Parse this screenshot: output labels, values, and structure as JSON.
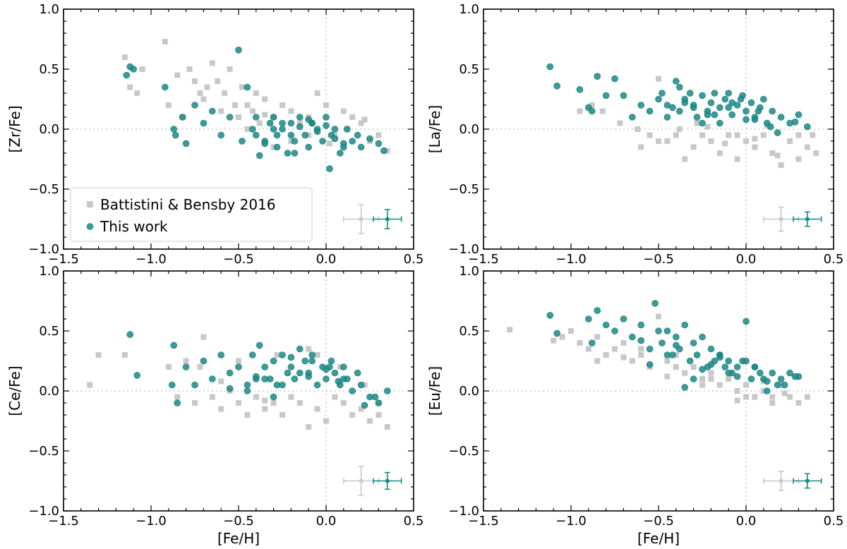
{
  "figure": {
    "legend_location": "lower-left of top-left panel"
  },
  "colors": {
    "battistini": "#c8c8c8",
    "this_work": "#1a8a86",
    "this_work_edge": "#0f7773",
    "zero_line": "#c8c8c8",
    "axes": "#000000"
  },
  "legend": {
    "items": [
      {
        "label": "Battistini & Bensby 2016",
        "marker": "square"
      },
      {
        "label": "This work",
        "marker": "circle"
      }
    ]
  },
  "chart_data": [
    {
      "type": "scatter",
      "panel": "top-left",
      "title": "",
      "xlabel": "",
      "ylabel": "[Zr/Fe]",
      "xlim": [
        -1.5,
        0.5
      ],
      "ylim": [
        -1.0,
        1.0
      ],
      "xticks": [
        "−1.5",
        "−1.0",
        "−0.5",
        "0.0",
        "0.5"
      ],
      "yticks": [
        "−1.0",
        "−0.5",
        "0.0",
        "0.5",
        "1.0"
      ],
      "series": [
        {
          "name": "Battistini & Bensby 2016",
          "x": [
            -1.15,
            -1.12,
            -1.08,
            -1.05,
            -0.92,
            -0.9,
            -0.85,
            -0.82,
            -0.78,
            -0.75,
            -0.72,
            -0.7,
            -0.68,
            -0.65,
            -0.62,
            -0.6,
            -0.58,
            -0.55,
            -0.52,
            -0.5,
            -0.48,
            -0.45,
            -0.42,
            -0.4,
            -0.38,
            -0.35,
            -0.3,
            -0.25,
            -0.2,
            -0.15,
            -0.1,
            -0.05,
            0.0,
            0.05,
            0.1,
            0.15,
            0.2,
            0.25,
            0.3,
            0.35,
            -0.3,
            -0.2,
            -0.1,
            0.02,
            0.12,
            0.22,
            -0.45,
            -0.35
          ],
          "y": [
            0.6,
            0.35,
            0.3,
            0.5,
            0.73,
            0.2,
            0.45,
            0.1,
            0.5,
            0.4,
            0.3,
            0.25,
            0.35,
            0.55,
            0.4,
            0.15,
            0.3,
            0.5,
            0.2,
            0.1,
            0.35,
            0.2,
            0.15,
            0.3,
            0.05,
            0.25,
            0.1,
            0.2,
            0.15,
            0.05,
            0.1,
            0.3,
            0.2,
            -0.05,
            0.15,
            0.1,
            0.05,
            -0.1,
            -0.05,
            -0.18,
            -0.15,
            -0.1,
            -0.05,
            -0.12,
            0.0,
            0.08,
            0.0,
            0.12
          ]
        },
        {
          "name": "This work",
          "x": [
            -1.14,
            -1.12,
            -1.1,
            -0.92,
            -0.87,
            -0.86,
            -0.82,
            -0.8,
            -0.75,
            -0.7,
            -0.65,
            -0.6,
            -0.55,
            -0.5,
            -0.48,
            -0.45,
            -0.42,
            -0.4,
            -0.38,
            -0.35,
            -0.32,
            -0.3,
            -0.28,
            -0.25,
            -0.22,
            -0.2,
            -0.18,
            -0.15,
            -0.12,
            -0.1,
            -0.08,
            -0.05,
            -0.02,
            0.0,
            0.03,
            0.05,
            0.08,
            0.1,
            0.12,
            0.15,
            0.18,
            0.2,
            0.25,
            0.3,
            0.33,
            -0.3,
            -0.25,
            -0.2,
            -0.15,
            -0.1,
            -0.05,
            0.0,
            0.05,
            0.1,
            -0.35,
            -0.28,
            -0.18,
            -0.08,
            0.02,
            -0.4
          ],
          "y": [
            0.45,
            0.52,
            0.5,
            0.35,
            0.0,
            -0.05,
            0.1,
            -0.12,
            0.2,
            0.05,
            0.15,
            -0.05,
            0.1,
            0.66,
            -0.1,
            0.35,
            0.0,
            -0.05,
            -0.22,
            -0.1,
            0.05,
            0.1,
            -0.15,
            0.0,
            -0.2,
            0.05,
            -0.1,
            0.1,
            -0.05,
            -0.15,
            0.05,
            0.0,
            -0.1,
            0.1,
            -0.05,
            0.0,
            -0.2,
            -0.12,
            0.0,
            -0.1,
            -0.05,
            -0.15,
            -0.08,
            -0.12,
            -0.18,
            0.0,
            0.05,
            -0.05,
            0.02,
            0.08,
            -0.02,
            0.03,
            -0.08,
            -0.15,
            -0.12,
            -0.05,
            -0.2,
            0.05,
            -0.33,
            0.1
          ]
        }
      ],
      "error_bars": [
        {
          "name": "Battistini & Bensby 2016",
          "x": 0.2,
          "y": -0.75,
          "xerr": 0.1,
          "yerr": 0.12
        },
        {
          "name": "This work",
          "x": 0.35,
          "y": -0.75,
          "xerr": 0.08,
          "yerr": 0.08
        }
      ]
    },
    {
      "type": "scatter",
      "panel": "top-right",
      "title": "",
      "xlabel": "",
      "ylabel": "[La/Fe]",
      "xlim": [
        -1.5,
        0.5
      ],
      "ylim": [
        -1.0,
        1.0
      ],
      "xticks": [
        "−1.5",
        "−1.0",
        "−0.5",
        "0.0",
        "0.5"
      ],
      "yticks": [
        "−1.0",
        "−0.5",
        "0.0",
        "0.5",
        "1.0"
      ],
      "series": [
        {
          "name": "Battistini & Bensby 2016",
          "x": [
            -0.95,
            -0.88,
            -0.82,
            -0.72,
            -0.62,
            -0.55,
            -0.5,
            -0.45,
            -0.4,
            -0.35,
            -0.3,
            -0.25,
            -0.2,
            -0.15,
            -0.1,
            -0.05,
            0.0,
            0.05,
            0.1,
            0.15,
            0.2,
            0.25,
            0.3,
            0.35,
            0.38,
            0.4,
            -0.38,
            -0.28,
            -0.12,
            0.05,
            0.18,
            -0.5,
            -0.22,
            0.3,
            -0.6,
            -0.05,
            0.12
          ],
          "y": [
            0.15,
            0.2,
            0.15,
            0.05,
            0.0,
            -0.05,
            0.42,
            -0.1,
            -0.05,
            -0.25,
            -0.15,
            -0.05,
            -0.1,
            -0.2,
            -0.05,
            -0.25,
            -0.1,
            -0.15,
            -0.05,
            -0.2,
            -0.3,
            -0.1,
            -0.05,
            -0.15,
            -0.05,
            -0.2,
            0.0,
            0.05,
            -0.12,
            -0.08,
            -0.22,
            -0.1,
            0.02,
            -0.25,
            -0.15,
            -0.05,
            0.03
          ]
        },
        {
          "name": "This work",
          "x": [
            -1.12,
            -1.08,
            -0.95,
            -0.9,
            -0.88,
            -0.85,
            -0.8,
            -0.75,
            -0.7,
            -0.65,
            -0.6,
            -0.55,
            -0.5,
            -0.48,
            -0.45,
            -0.42,
            -0.4,
            -0.38,
            -0.35,
            -0.32,
            -0.3,
            -0.28,
            -0.25,
            -0.22,
            -0.2,
            -0.18,
            -0.15,
            -0.12,
            -0.1,
            -0.08,
            -0.05,
            -0.02,
            0.0,
            0.03,
            0.05,
            0.08,
            0.1,
            0.12,
            0.15,
            0.2,
            0.25,
            0.3,
            0.35,
            -0.38,
            -0.3,
            -0.22,
            -0.15,
            -0.08,
            0.0,
            0.07,
            0.14,
            -0.25,
            -0.18,
            -0.1,
            -0.03,
            0.05,
            0.18,
            -0.45,
            -0.35,
            0.28
          ],
          "y": [
            0.52,
            0.36,
            0.33,
            0.18,
            0.15,
            0.44,
            0.28,
            0.42,
            0.28,
            0.1,
            0.2,
            0.15,
            0.25,
            0.3,
            0.2,
            0.18,
            0.4,
            0.15,
            0.25,
            0.3,
            0.2,
            0.1,
            0.28,
            0.15,
            0.22,
            0.3,
            0.18,
            0.25,
            0.3,
            0.12,
            0.2,
            0.28,
            0.15,
            0.22,
            0.1,
            0.18,
            0.25,
            0.05,
            0.15,
            0.1,
            0.05,
            0.12,
            0.02,
            0.35,
            0.18,
            0.12,
            0.05,
            0.22,
            0.08,
            0.15,
            0.02,
            0.05,
            0.12,
            0.18,
            0.25,
            0.08,
            -0.03,
            0.1,
            0.22,
            0.06
          ]
        }
      ],
      "error_bars": [
        {
          "name": "Battistini & Bensby 2016",
          "x": 0.2,
          "y": -0.75,
          "xerr": 0.1,
          "yerr": 0.1
        },
        {
          "name": "This work",
          "x": 0.35,
          "y": -0.75,
          "xerr": 0.08,
          "yerr": 0.06
        }
      ]
    },
    {
      "type": "scatter",
      "panel": "bottom-left",
      "title": "",
      "xlabel": "[Fe/H]",
      "ylabel": "[Ce/Fe]",
      "xlim": [
        -1.5,
        0.5
      ],
      "ylim": [
        -1.0,
        1.0
      ],
      "xticks": [
        "−1.5",
        "−1.0",
        "−0.5",
        "0.0",
        "0.5"
      ],
      "yticks": [
        "−1.0",
        "−0.5",
        "0.0",
        "0.5",
        "1.0"
      ],
      "series": [
        {
          "name": "Battistini & Bensby 2016",
          "x": [
            -1.35,
            -1.3,
            -1.15,
            -0.9,
            -0.85,
            -0.8,
            -0.75,
            -0.7,
            -0.65,
            -0.6,
            -0.55,
            -0.5,
            -0.45,
            -0.4,
            -0.35,
            -0.3,
            -0.25,
            -0.2,
            -0.15,
            -0.1,
            -0.05,
            0.0,
            0.05,
            0.1,
            0.15,
            0.2,
            0.25,
            0.3,
            0.35,
            -0.72,
            -0.5,
            -0.28,
            -0.1,
            0.08,
            0.22,
            -0.6,
            -0.35,
            -0.05,
            0.3
          ],
          "y": [
            0.05,
            0.3,
            0.3,
            0.2,
            -0.05,
            0.25,
            -0.1,
            0.45,
            -0.05,
            -0.15,
            0.0,
            -0.1,
            -0.2,
            -0.05,
            -0.15,
            -0.1,
            -0.2,
            -0.05,
            -0.1,
            -0.3,
            -0.15,
            -0.25,
            -0.05,
            -0.1,
            -0.2,
            -0.15,
            -0.25,
            -0.1,
            -0.3,
            0.2,
            0.25,
            0.3,
            0.35,
            0.2,
            0.05,
            0.08,
            -0.08,
            0.3,
            -0.2
          ]
        },
        {
          "name": "This work",
          "x": [
            -1.12,
            -1.08,
            -0.88,
            -0.87,
            -0.85,
            -0.8,
            -0.75,
            -0.7,
            -0.65,
            -0.6,
            -0.55,
            -0.5,
            -0.45,
            -0.42,
            -0.4,
            -0.38,
            -0.35,
            -0.32,
            -0.3,
            -0.28,
            -0.25,
            -0.22,
            -0.2,
            -0.18,
            -0.15,
            -0.12,
            -0.1,
            -0.08,
            -0.05,
            -0.02,
            0.0,
            0.03,
            0.05,
            0.08,
            0.1,
            0.12,
            0.15,
            0.18,
            0.2,
            0.25,
            0.3,
            0.35,
            -0.35,
            -0.25,
            -0.15,
            -0.08,
            0.02,
            0.1,
            -0.45,
            -0.3,
            -0.2,
            -0.1,
            0.0,
            0.07,
            -0.55,
            -0.4,
            0.22,
            0.28
          ],
          "y": [
            0.47,
            0.13,
            0.05,
            0.38,
            -0.1,
            0.2,
            0.05,
            0.25,
            0.1,
            0.3,
            0.15,
            0.2,
            0.05,
            0.3,
            0.1,
            0.38,
            0.2,
            0.1,
            0.25,
            0.05,
            0.3,
            0.15,
            0.2,
            0.1,
            0.35,
            0.25,
            0.15,
            0.3,
            0.05,
            0.2,
            0.1,
            0.25,
            0.15,
            0.05,
            0.2,
            0.1,
            0.0,
            0.15,
            0.05,
            -0.05,
            -0.1,
            0.0,
            0.1,
            0.05,
            0.15,
            0.25,
            0.2,
            0.1,
            0.0,
            -0.05,
            0.28,
            0.12,
            0.18,
            0.08,
            0.02,
            0.12,
            -0.12,
            -0.05
          ]
        }
      ],
      "error_bars": [
        {
          "name": "Battistini & Bensby 2016",
          "x": 0.2,
          "y": -0.75,
          "xerr": 0.1,
          "yerr": 0.12
        },
        {
          "name": "This work",
          "x": 0.35,
          "y": -0.75,
          "xerr": 0.08,
          "yerr": 0.07
        }
      ]
    },
    {
      "type": "scatter",
      "panel": "bottom-right",
      "title": "",
      "xlabel": "[Fe/H]",
      "ylabel": "[Eu/Fe]",
      "xlim": [
        -1.5,
        0.5
      ],
      "ylim": [
        -1.0,
        1.0
      ],
      "xticks": [
        "−1.5",
        "−1.0",
        "−0.5",
        "0.0",
        "0.5"
      ],
      "yticks": [
        "−1.0",
        "−0.5",
        "0.0",
        "0.5",
        "1.0"
      ],
      "series": [
        {
          "name": "Battistini & Bensby 2016",
          "x": [
            -1.35,
            -1.1,
            -1.05,
            -1.0,
            -0.95,
            -0.9,
            -0.85,
            -0.8,
            -0.75,
            -0.7,
            -0.65,
            -0.6,
            -0.55,
            -0.5,
            -0.45,
            -0.4,
            -0.35,
            -0.3,
            -0.25,
            -0.2,
            -0.15,
            -0.1,
            -0.05,
            0.0,
            0.05,
            0.1,
            0.15,
            0.2,
            0.25,
            0.3,
            0.35,
            -0.85,
            -0.6,
            -0.4,
            -0.2,
            0.0,
            0.15,
            -0.7,
            -0.45,
            -0.25,
            -0.05,
            0.1,
            0.22
          ],
          "y": [
            0.51,
            0.42,
            0.45,
            0.5,
            0.4,
            0.35,
            0.45,
            0.3,
            0.35,
            0.4,
            0.25,
            0.3,
            0.2,
            0.62,
            0.25,
            0.3,
            0.15,
            0.2,
            0.1,
            0.15,
            0.05,
            0.1,
            0.0,
            0.05,
            -0.05,
            0.0,
            -0.1,
            0.05,
            -0.05,
            -0.1,
            -0.05,
            0.25,
            0.35,
            0.2,
            0.1,
            -0.05,
            -0.05,
            0.28,
            0.12,
            0.05,
            -0.08,
            0.08,
            -0.02
          ]
        },
        {
          "name": "This work",
          "x": [
            -1.12,
            -1.08,
            -0.9,
            -0.88,
            -0.85,
            -0.8,
            -0.75,
            -0.7,
            -0.65,
            -0.6,
            -0.55,
            -0.52,
            -0.5,
            -0.48,
            -0.45,
            -0.42,
            -0.4,
            -0.38,
            -0.35,
            -0.32,
            -0.3,
            -0.28,
            -0.25,
            -0.22,
            -0.2,
            -0.18,
            -0.15,
            -0.12,
            -0.1,
            -0.08,
            -0.05,
            -0.02,
            0.0,
            0.03,
            0.05,
            0.08,
            0.1,
            0.12,
            0.15,
            0.18,
            0.2,
            0.25,
            0.3,
            -0.55,
            -0.45,
            -0.35,
            -0.25,
            -0.15,
            -0.05,
            0.05,
            -0.3,
            -0.2,
            -0.1,
            0.0,
            0.12,
            0.22,
            -0.6,
            -0.4,
            0.28,
            -0.15
          ],
          "y": [
            0.63,
            0.48,
            0.6,
            0.4,
            0.67,
            0.55,
            0.5,
            0.6,
            0.45,
            0.55,
            0.35,
            0.73,
            0.5,
            0.4,
            0.5,
            0.3,
            0.45,
            0.35,
            0.55,
            0.25,
            0.4,
            0.3,
            0.45,
            0.2,
            0.35,
            0.25,
            0.3,
            0.2,
            0.25,
            0.15,
            0.2,
            0.25,
            0.58,
            0.1,
            0.2,
            0.15,
            0.1,
            0.0,
            0.15,
            0.05,
            0.1,
            0.15,
            0.12,
            0.22,
            0.3,
            0.03,
            0.18,
            0.28,
            0.12,
            0.2,
            0.1,
            0.22,
            0.15,
            0.25,
            0.08,
            0.05,
            0.42,
            0.38,
            0.12,
            0.3
          ]
        }
      ],
      "error_bars": [
        {
          "name": "Battistini & Bensby 2016",
          "x": 0.2,
          "y": -0.75,
          "xerr": 0.1,
          "yerr": 0.08
        },
        {
          "name": "This work",
          "x": 0.35,
          "y": -0.75,
          "xerr": 0.08,
          "yerr": 0.06
        }
      ]
    }
  ]
}
